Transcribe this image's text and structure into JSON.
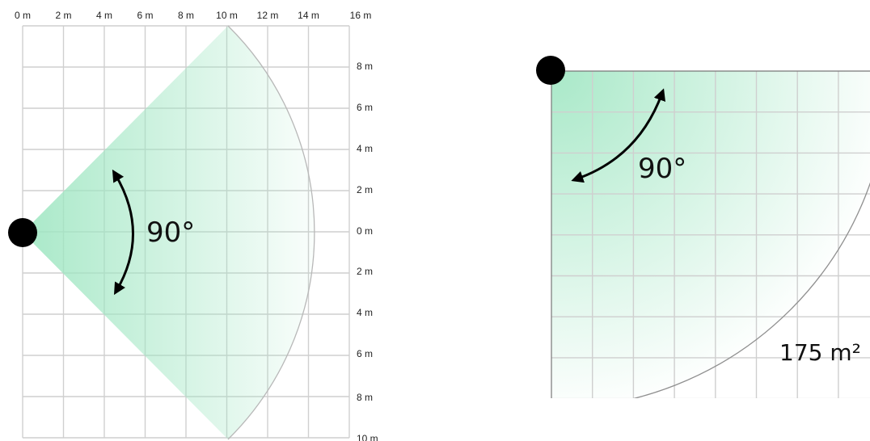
{
  "left_diagram": {
    "top_ticks": [
      "0 m",
      "2 m",
      "4 m",
      "6 m",
      "8 m",
      "10 m",
      "12 m",
      "14 m",
      "16 m"
    ],
    "right_ticks": [
      "8 m",
      "6 m",
      "4 m",
      "2 m",
      "0 m",
      "2 m",
      "4 m",
      "6 m",
      "8 m",
      "10 m"
    ],
    "angle_label": "90°"
  },
  "right_diagram": {
    "angle_label": "90°",
    "area_label": "175 m²"
  },
  "colors": {
    "grid": "#cfcfcf",
    "detection_green": "#aeeacb",
    "sensor": "#000000",
    "arc": "#9a9a9a"
  }
}
